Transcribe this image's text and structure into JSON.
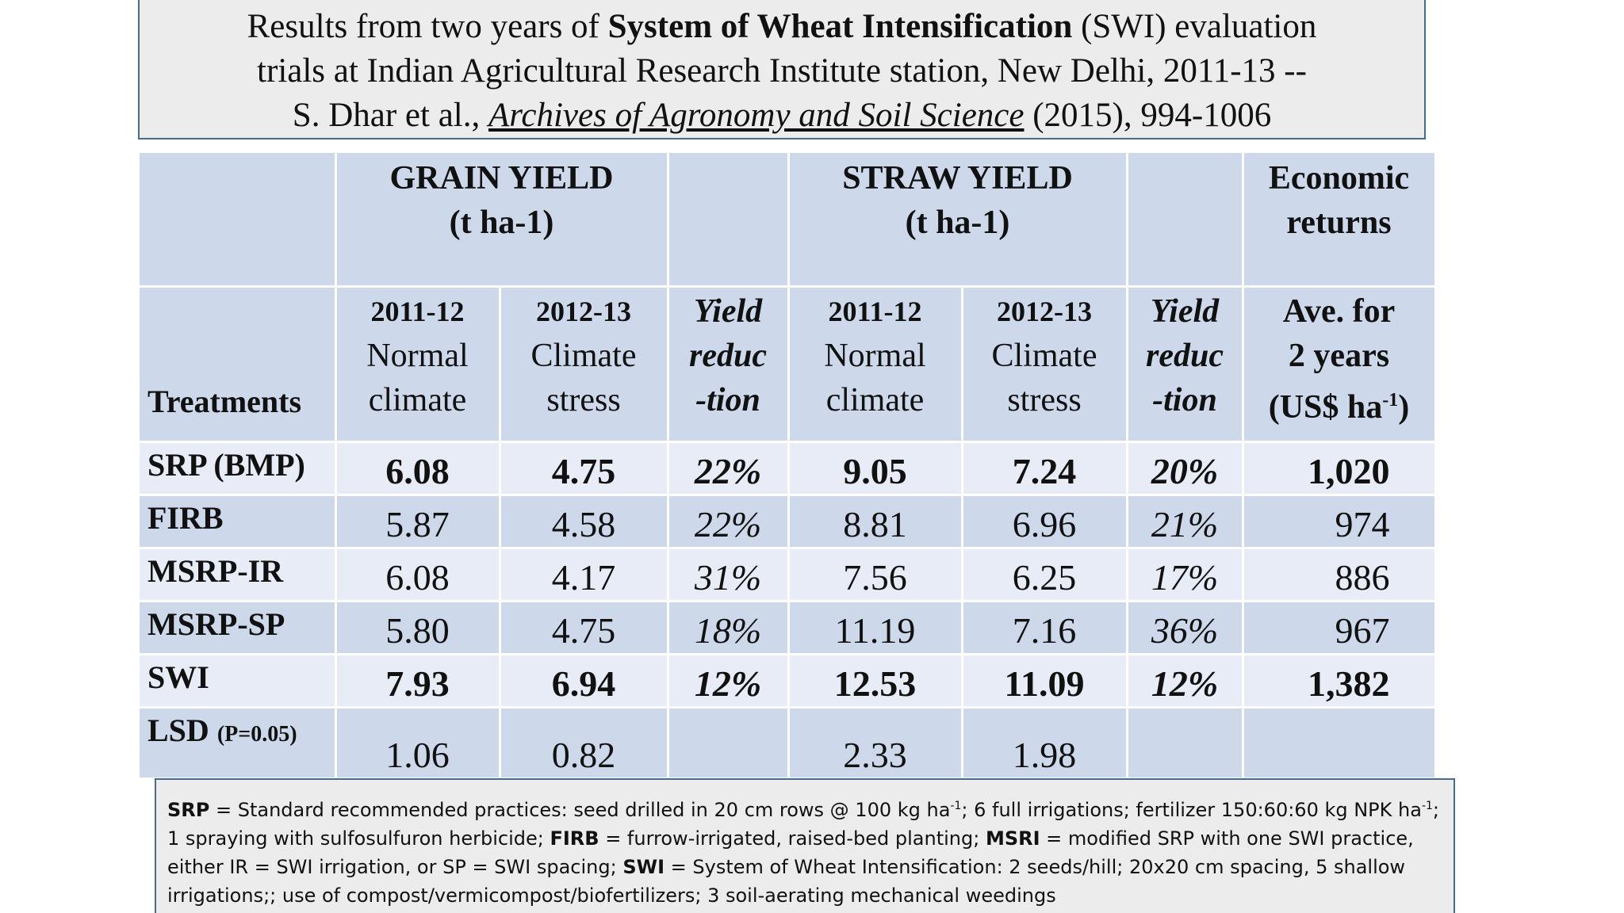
{
  "title": {
    "pre": "Results from two years of ",
    "bold": "System of Wheat Intensification",
    "post": " (SWI) evaluation",
    "line2": "trials at Indian Agricultural Research Institute station, New Delhi, 2011-13 --",
    "line3_pre": "S. Dhar et al., ",
    "journal": "Archives of Agronomy and Soil Science",
    "line3_post": " (2015), 994-1006"
  },
  "header": {
    "grain_yield": "GRAIN YIELD",
    "grain_unit": "(t ha-1)",
    "straw_yield": "STRAW YIELD",
    "straw_unit": "(t ha-1)",
    "economic": "Economic",
    "returns": "returns",
    "treatments": "Treatments",
    "yr1": "2011-12",
    "yr1_w1": "Normal",
    "yr1_w2": "climate",
    "yr2": "2012-13",
    "yr2_w1": "Climate",
    "yr2_w2": "stress",
    "red1": "Yield",
    "red2": "reduc",
    "red3": "-tion",
    "ave1": "Ave. for",
    "ave2": "2 years",
    "ave3": "(US$ ha",
    "ave3_sup": "-1",
    "ave3_end": ")"
  },
  "rows": [
    {
      "name": "SRP (BMP)",
      "g1": "6.08",
      "g2": "4.75",
      "gr": "22%",
      "s1": "9.05",
      "s2": "7.24",
      "sr": "20%",
      "econ": "1,020"
    },
    {
      "name": "FIRB",
      "g1": "5.87",
      "g2": "4.58",
      "gr": "22%",
      "s1": "8.81",
      "s2": "6.96",
      "sr": "21%",
      "econ": "974"
    },
    {
      "name": "MSRP-IR",
      "g1": "6.08",
      "g2": "4.17",
      "gr": "31%",
      "s1": "7.56",
      "s2": "6.25",
      "sr": "17%",
      "econ": "886"
    },
    {
      "name": "MSRP-SP",
      "g1": "5.80",
      "g2": "4.75",
      "gr": "18%",
      "s1": "11.19",
      "s2": "7.16",
      "sr": "36%",
      "econ": "967"
    },
    {
      "name": "SWI",
      "g1": "7.93",
      "g2": "6.94",
      "gr": "12%",
      "s1": "12.53",
      "s2": "11.09",
      "sr": "12%",
      "econ": "1,382"
    }
  ],
  "lsd": {
    "name": "LSD",
    "p": "(P=0.05)",
    "g1": "1.06",
    "g2": "0.82",
    "s1": "2.33",
    "s2": "1.98"
  },
  "note": {
    "srp": "SRP",
    "srp_text_a": " = Standard recommended practices: seed drilled in 20 cm rows @ 100 kg ha",
    "srp_sup_a": "-1",
    "srp_text_b": "; 6 full irrigations; fertilizer 150:60:60 kg NPK ha",
    "srp_sup_b": "-1",
    "srp_text_c": "; 1 spraying with sulfosulfuron herbicide; ",
    "firb": "FIRB",
    "firb_text": " = furrow-irrigated, raised-bed planting; ",
    "msri": "MSRI",
    "msri_text": " = modified SRP with one SWI practice, either IR = SWI irrigation, or SP = SWI spacing; ",
    "swi": "SWI",
    "swi_text": " = System of Wheat Intensification: 2 seeds/hill; 20x20 cm spacing, 5 shallow irrigations;;  use of compost/vermicompost/biofertilizers; 3 soil-aerating mechanical weedings"
  }
}
